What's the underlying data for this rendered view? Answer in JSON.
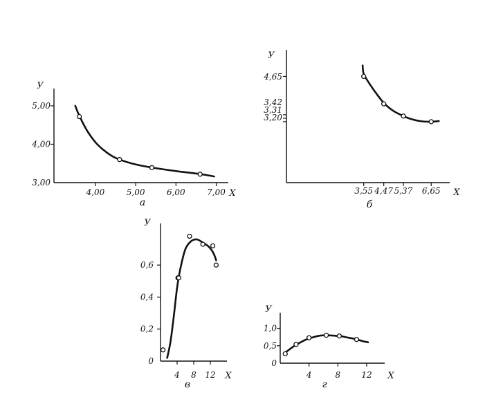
{
  "colors": {
    "ink": "#111111",
    "background": "#ffffff"
  },
  "chart_data": [
    {
      "id": "a",
      "type": "line",
      "panel_label": "а",
      "xlabel": "X",
      "ylabel": "У",
      "x_ticks": [
        4.0,
        5.0,
        6.0,
        7.0
      ],
      "x_tick_labels": [
        "4,00",
        "5,00",
        "6,00",
        "7,00"
      ],
      "y_ticks": [
        3.0,
        4.0,
        5.0
      ],
      "y_tick_labels": [
        "3,00",
        "4,00",
        "5,00"
      ],
      "xlim": [
        2.97,
        7.3
      ],
      "ylim": [
        3.0,
        5.45
      ],
      "points": [
        [
          3.6,
          4.72
        ],
        [
          4.6,
          3.6
        ],
        [
          5.4,
          3.39
        ],
        [
          6.6,
          3.22
        ]
      ],
      "curve": [
        [
          3.5,
          5.0
        ],
        [
          3.6,
          4.74
        ],
        [
          3.8,
          4.34
        ],
        [
          4.0,
          4.05
        ],
        [
          4.2,
          3.85
        ],
        [
          4.4,
          3.7
        ],
        [
          4.6,
          3.6
        ],
        [
          4.9,
          3.5
        ],
        [
          5.2,
          3.43
        ],
        [
          5.6,
          3.36
        ],
        [
          6.0,
          3.3
        ],
        [
          6.4,
          3.25
        ],
        [
          6.8,
          3.19
        ],
        [
          6.95,
          3.16
        ]
      ]
    },
    {
      "id": "b",
      "type": "line",
      "panel_label": "б",
      "xlabel": "X",
      "ylabel": "У",
      "x_ticks": [
        3.55,
        4.47,
        5.37,
        6.65
      ],
      "x_tick_labels": [
        "3,55",
        "4,47",
        "5,37",
        "6,65"
      ],
      "y_ticks": [
        3.2,
        3.31,
        3.42,
        4.65
      ],
      "y_tick_labels": [
        "3,20",
        "3,31",
        "3,42",
        "4,65"
      ],
      "xlim": [
        0,
        7.5
      ],
      "ylim": [
        1.25,
        5.5
      ],
      "points": [
        [
          3.55,
          4.65
        ],
        [
          4.47,
          3.77
        ],
        [
          5.37,
          3.38
        ],
        [
          6.65,
          3.2
        ]
      ],
      "curve": [
        [
          3.5,
          5.0
        ],
        [
          3.55,
          4.73
        ],
        [
          3.8,
          4.43
        ],
        [
          4.1,
          4.13
        ],
        [
          4.47,
          3.8
        ],
        [
          4.9,
          3.55
        ],
        [
          5.37,
          3.38
        ],
        [
          5.8,
          3.27
        ],
        [
          6.25,
          3.21
        ],
        [
          6.65,
          3.2
        ],
        [
          7.0,
          3.22
        ]
      ]
    },
    {
      "id": "v",
      "type": "line",
      "panel_label": "в",
      "xlabel": "X",
      "ylabel": "У",
      "x_ticks": [
        4,
        8,
        12
      ],
      "x_tick_labels": [
        "4",
        "8",
        "12"
      ],
      "y_ticks": [
        0,
        0.2,
        0.4,
        0.6
      ],
      "y_tick_labels": [
        "0",
        "0,2",
        "0,4",
        "0,6"
      ],
      "xlim": [
        0,
        16
      ],
      "ylim": [
        0,
        0.86
      ],
      "points": [
        [
          0.6,
          0.07
        ],
        [
          4.2,
          0.52
        ],
        [
          4.4,
          0.52
        ],
        [
          7.0,
          0.78
        ],
        [
          10.2,
          0.73
        ],
        [
          12.6,
          0.72
        ],
        [
          13.4,
          0.6
        ]
      ],
      "curve": [
        [
          1.6,
          0.02
        ],
        [
          2.4,
          0.12
        ],
        [
          3.2,
          0.28
        ],
        [
          4.0,
          0.46
        ],
        [
          4.8,
          0.58
        ],
        [
          6.0,
          0.7
        ],
        [
          7.4,
          0.75
        ],
        [
          8.8,
          0.76
        ],
        [
          10.2,
          0.74
        ],
        [
          11.4,
          0.72
        ],
        [
          12.4,
          0.69
        ],
        [
          13.0,
          0.66
        ],
        [
          13.4,
          0.63
        ]
      ]
    },
    {
      "id": "g",
      "type": "line",
      "panel_label": "г",
      "xlabel": "X",
      "ylabel": "У",
      "x_ticks": [
        4,
        8,
        12
      ],
      "x_tick_labels": [
        "4",
        "8",
        "12"
      ],
      "y_ticks": [
        0,
        0.5,
        1.0
      ],
      "y_tick_labels": [
        "0",
        "0,5",
        "1,0"
      ],
      "xlim": [
        0,
        14.5
      ],
      "ylim": [
        0,
        1.45
      ],
      "points": [
        [
          0.7,
          0.27
        ],
        [
          2.2,
          0.54
        ],
        [
          4.0,
          0.73
        ],
        [
          6.4,
          0.8
        ],
        [
          8.2,
          0.78
        ],
        [
          10.6,
          0.68
        ]
      ],
      "curve": [
        [
          0.5,
          0.27
        ],
        [
          1.5,
          0.43
        ],
        [
          2.5,
          0.56
        ],
        [
          3.5,
          0.67
        ],
        [
          4.5,
          0.74
        ],
        [
          5.5,
          0.79
        ],
        [
          6.5,
          0.8
        ],
        [
          7.5,
          0.79
        ],
        [
          8.5,
          0.77
        ],
        [
          9.5,
          0.73
        ],
        [
          10.5,
          0.69
        ],
        [
          11.5,
          0.63
        ],
        [
          12.2,
          0.6
        ]
      ]
    }
  ]
}
